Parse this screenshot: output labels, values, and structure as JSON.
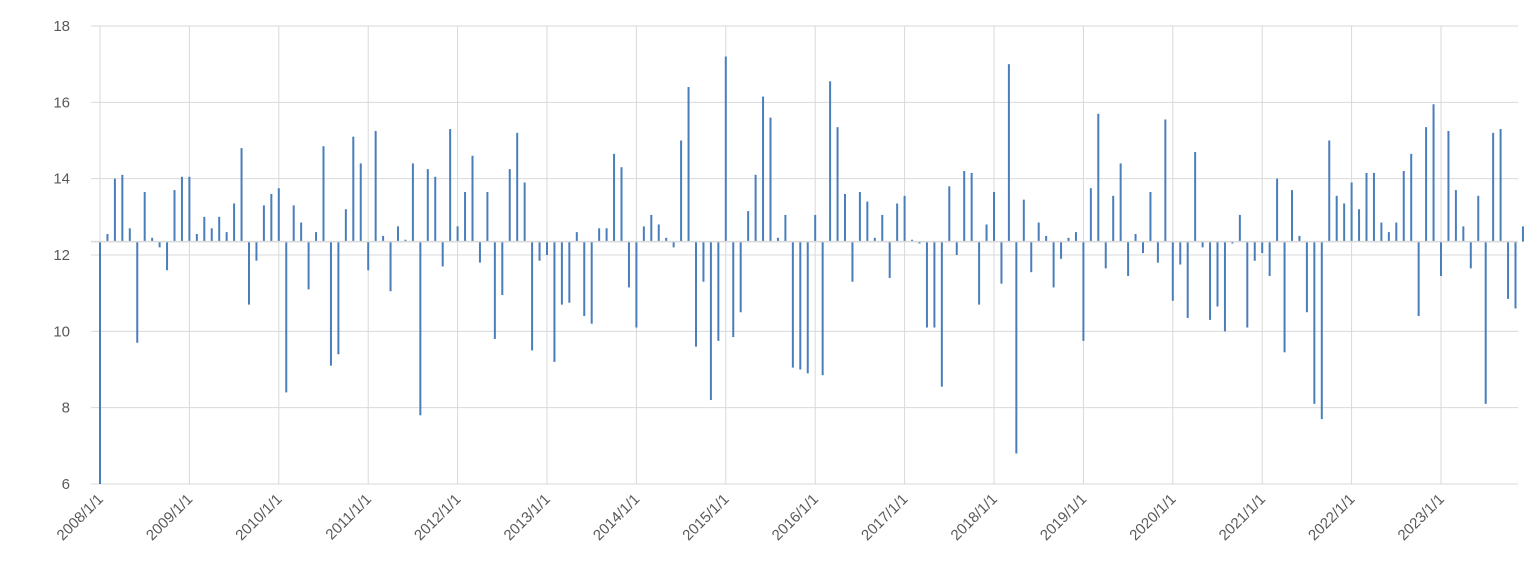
{
  "chart_data": {
    "type": "bar",
    "title": "",
    "xlabel": "",
    "ylabel": "",
    "baseline": 12.35,
    "ylim": [
      6,
      18
    ],
    "yticks": [
      6,
      8,
      10,
      12,
      14,
      16,
      18
    ],
    "xticks": [
      "2008/1/1",
      "2009/1/1",
      "2010/1/1",
      "2011/1/1",
      "2012/1/1",
      "2013/1/1",
      "2014/1/1",
      "2015/1/1",
      "2016/1/1",
      "2017/1/1",
      "2018/1/1",
      "2019/1/1",
      "2020/1/1",
      "2021/1/1",
      "2022/1/1",
      "2023/1/1"
    ],
    "grid": true,
    "bar_color": "#4a7ebb",
    "start": "2008-01",
    "values": [
      6.0,
      12.55,
      14.0,
      14.1,
      12.7,
      9.7,
      13.65,
      12.45,
      12.2,
      11.6,
      13.7,
      14.05,
      14.05,
      12.55,
      13.0,
      12.7,
      13.0,
      12.6,
      13.35,
      14.8,
      10.7,
      11.85,
      13.3,
      13.6,
      13.75,
      8.4,
      13.3,
      12.85,
      11.1,
      12.6,
      14.85,
      9.1,
      9.4,
      13.2,
      15.1,
      14.4,
      11.6,
      15.25,
      12.5,
      11.05,
      12.75,
      12.4,
      14.4,
      7.8,
      14.25,
      14.05,
      11.7,
      15.3,
      12.75,
      13.65,
      14.6,
      11.8,
      13.65,
      9.8,
      10.95,
      14.25,
      15.2,
      13.9,
      9.5,
      11.85,
      12.0,
      9.2,
      10.7,
      10.75,
      12.6,
      10.4,
      10.2,
      12.7,
      12.7,
      14.65,
      14.3,
      11.15,
      10.1,
      12.75,
      13.05,
      12.8,
      12.45,
      12.2,
      15.0,
      16.4,
      9.6,
      11.3,
      8.2,
      9.75,
      17.2,
      9.85,
      10.5,
      13.15,
      14.1,
      16.15,
      15.6,
      12.45,
      13.05,
      9.05,
      9.0,
      8.9,
      13.05,
      8.85,
      16.55,
      15.35,
      13.6,
      11.3,
      13.65,
      13.4,
      12.45,
      13.05,
      11.4,
      13.35,
      13.55,
      12.4,
      12.3,
      10.1,
      10.1,
      8.55,
      13.8,
      12.0,
      14.2,
      14.15,
      10.7,
      12.8,
      13.65,
      11.25,
      17.0,
      6.8,
      13.45,
      11.55,
      12.85,
      12.5,
      11.15,
      11.9,
      12.45,
      12.6,
      9.75,
      13.75,
      15.7,
      11.65,
      13.55,
      14.4,
      11.45,
      12.55,
      12.05,
      13.65,
      11.8,
      15.55,
      10.8,
      11.75,
      10.35,
      14.7,
      12.2,
      10.3,
      10.65,
      10.0,
      12.3,
      13.05,
      10.1,
      11.85,
      12.05,
      11.45,
      14.0,
      9.45,
      13.7,
      12.5,
      10.5,
      8.1,
      7.7,
      15.0,
      13.55,
      13.35,
      13.9,
      13.2,
      14.15,
      14.15,
      12.85,
      12.6,
      12.85,
      14.2,
      14.65,
      10.4,
      15.35,
      15.95,
      11.45,
      15.25,
      13.7,
      12.75,
      11.65,
      13.55,
      8.1,
      15.2,
      15.3,
      10.85,
      10.6,
      12.75
    ]
  }
}
